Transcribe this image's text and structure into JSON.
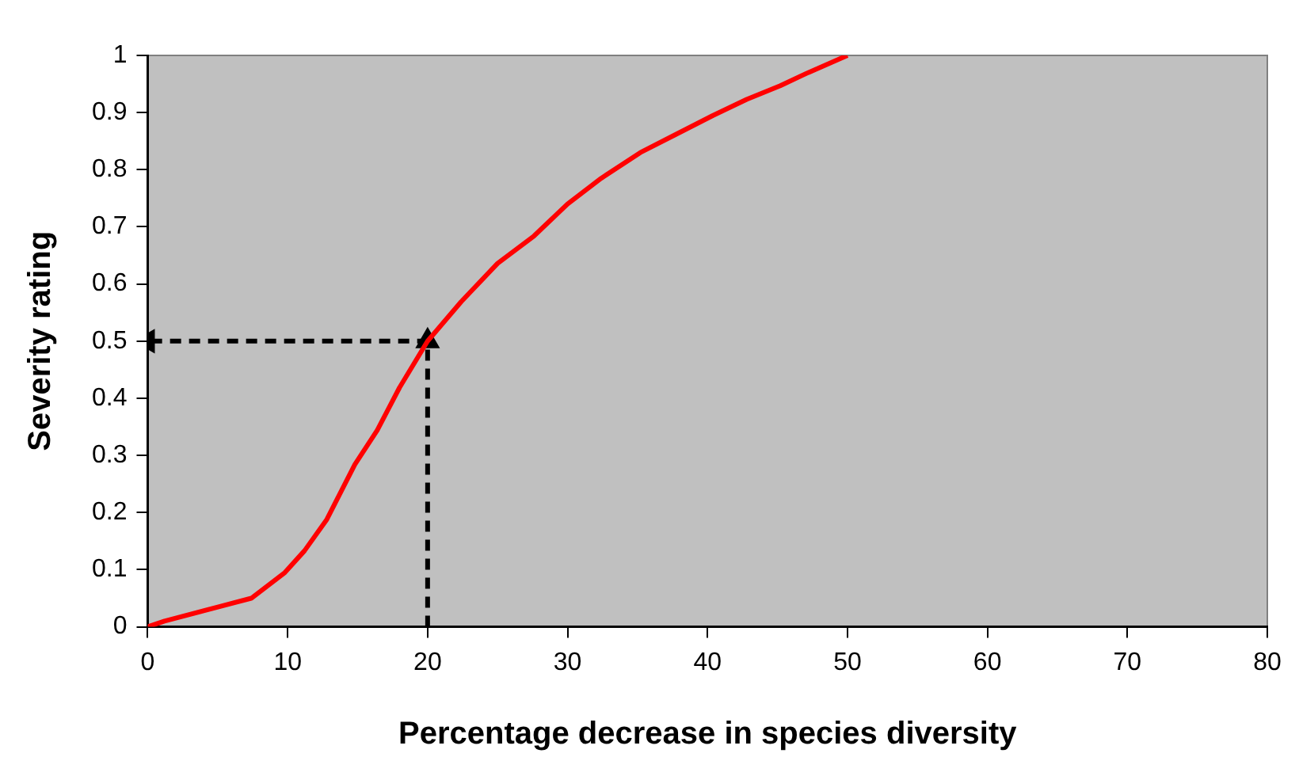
{
  "chart_data": {
    "type": "line",
    "xlabel": "Percentage decrease in species diversity",
    "ylabel": "Severity rating",
    "xlim": [
      0,
      80
    ],
    "xticks": [
      0,
      10,
      20,
      30,
      40,
      50,
      60,
      70,
      80
    ],
    "ylim": [
      0,
      1
    ],
    "yticks": [
      0,
      0.1,
      0.2,
      0.3,
      0.4,
      0.5,
      0.6,
      0.7,
      0.8,
      0.9,
      1
    ],
    "grid": false,
    "legend": false,
    "series": [
      {
        "color": "#ff0000",
        "line_style": "solid",
        "marker": "none",
        "x": [
          0,
          1.2,
          7.4,
          9.8,
          11.2,
          12.8,
          14.8,
          16.4,
          18,
          20,
          22.4,
          25,
          27.6,
          30,
          32.4,
          35.2,
          37.6,
          40.4,
          42.8,
          45.2,
          47.2,
          50
        ],
        "values": [
          0,
          0.01,
          0.05,
          0.095,
          0.133,
          0.188,
          0.284,
          0.344,
          0.419,
          0.5,
          0.569,
          0.636,
          0.684,
          0.74,
          0.785,
          0.83,
          0.86,
          0.895,
          0.923,
          0.947,
          0.97,
          1
        ]
      },
      {
        "color": "#000000",
        "line_style": "dashed",
        "marker": "triangle",
        "x": [
          20,
          20,
          0
        ],
        "values": [
          0,
          0.5,
          0.5
        ]
      }
    ]
  }
}
